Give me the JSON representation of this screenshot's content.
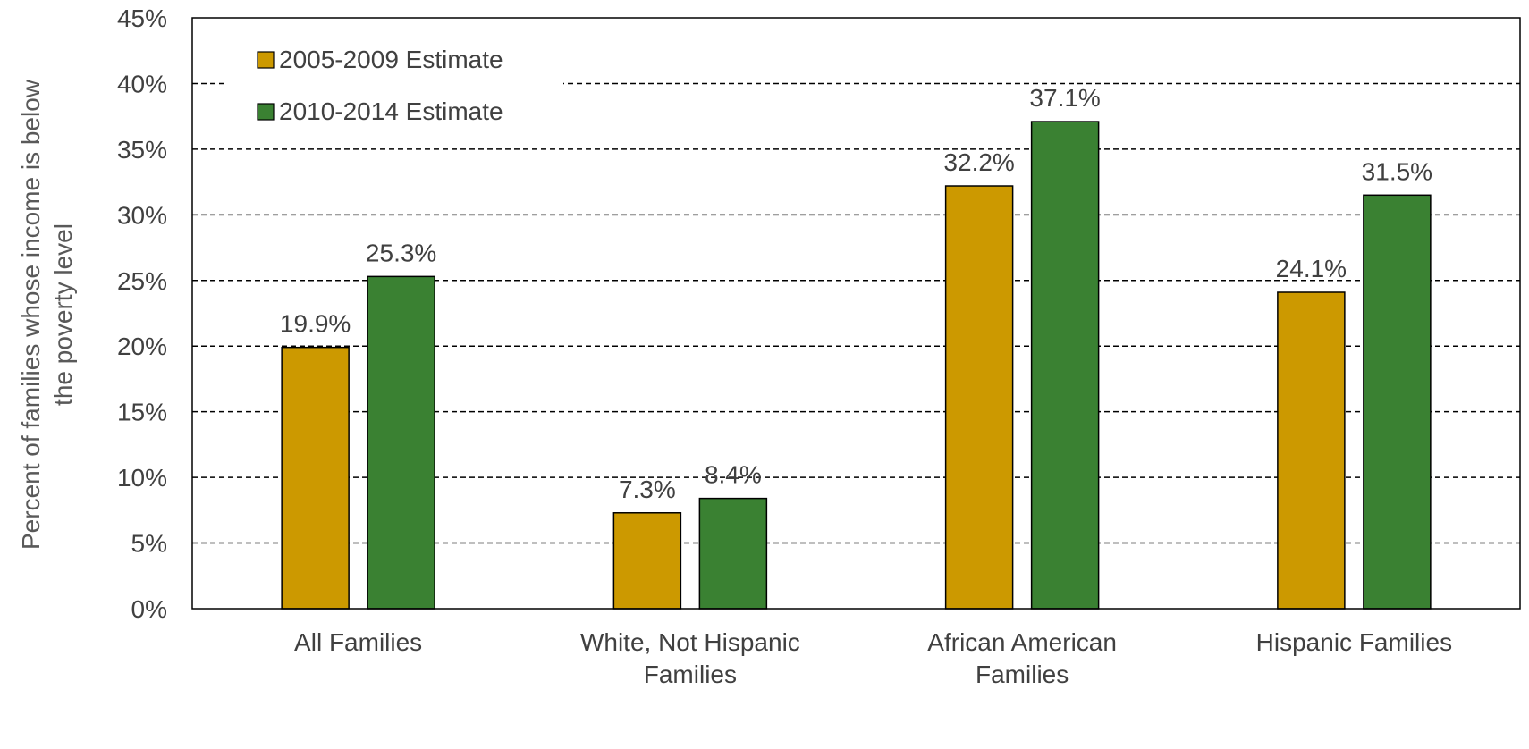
{
  "chart_data": {
    "type": "bar",
    "categories": [
      [
        "All Families"
      ],
      [
        "White, Not Hispanic",
        "Families"
      ],
      [
        "African American",
        "Families"
      ],
      [
        "Hispanic Families"
      ]
    ],
    "series": [
      {
        "name": "2005-2009 Estimate",
        "values": [
          19.9,
          7.3,
          32.2,
          24.1
        ],
        "labels": [
          "19.9%",
          "7.3%",
          "32.2%",
          "24.1%"
        ]
      },
      {
        "name": "2010-2014 Estimate",
        "values": [
          25.3,
          8.4,
          37.1,
          31.5
        ],
        "labels": [
          "25.3%",
          "8.4%",
          "37.1%",
          "31.5%"
        ]
      }
    ],
    "ylabel": [
      "Percent of families whose income is below",
      "the poverty level"
    ],
    "ylim": [
      0,
      45
    ],
    "yticks": [
      0,
      5,
      10,
      15,
      20,
      25,
      30,
      35,
      40,
      45
    ],
    "ytick_labels": [
      "0%",
      "5%",
      "10%",
      "15%",
      "20%",
      "25%",
      "30%",
      "35%",
      "40%",
      "45%"
    ],
    "grid": "dashed horizontal",
    "legend_position": "top-left",
    "colors": {
      "series1": "#cc9900",
      "series2": "#3a8132",
      "axis": "#000000",
      "grid": "#000000"
    }
  }
}
